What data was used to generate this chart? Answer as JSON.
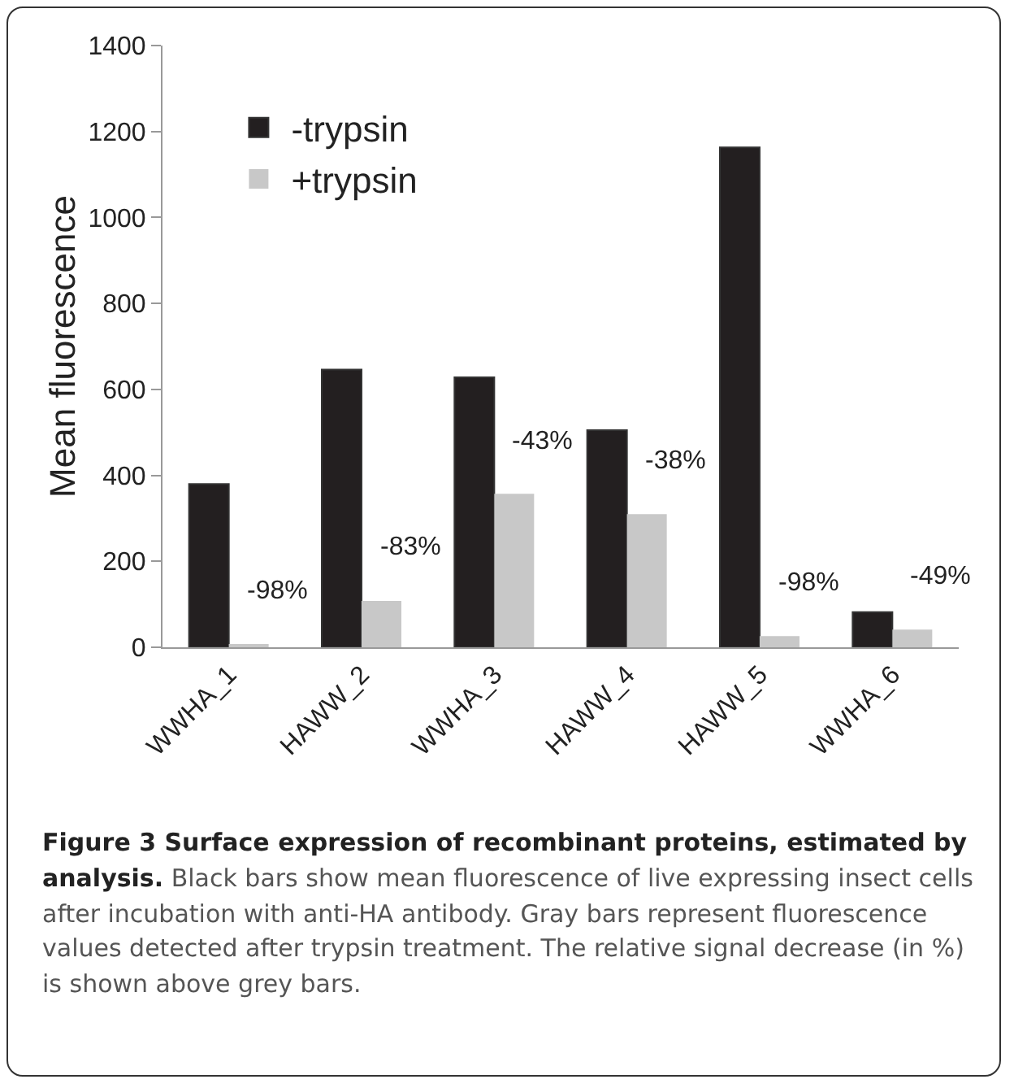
{
  "chart_data": {
    "type": "bar",
    "title": "Figure 3 Surface expression of recombinant proteins, estimated by analysis.",
    "ylabel": "Mean fluorescence",
    "categories": [
      "WWHA_1",
      "HAWW_2",
      "WWHA_3",
      "HAWW_4",
      "HAWW_5",
      "WWHA_6"
    ],
    "series": [
      {
        "name": "-trypsin",
        "color": "#231f20",
        "values": [
          380,
          646,
          628,
          505,
          1163,
          82
        ]
      },
      {
        "name": "+trypsin",
        "color": "#c8c8c8",
        "values": [
          6,
          108,
          357,
          310,
          26,
          41
        ]
      }
    ],
    "ylim": [
      0,
      1400
    ],
    "yticks": [
      0,
      200,
      400,
      600,
      800,
      1000,
      1200,
      1400
    ],
    "grid": false,
    "legend": "top left",
    "annotations": [
      {
        "text": "-98%",
        "x": "WWHA_1",
        "y": 6
      },
      {
        "text": "-83%",
        "x": "HAWW_2",
        "y": 108
      },
      {
        "text": "-43%",
        "x": "WWHA_3",
        "y": 357
      },
      {
        "text": "-38%",
        "x": "HAWW_4",
        "y": 310
      },
      {
        "text": "-98%",
        "x": "HAWW_5",
        "y": 26
      },
      {
        "text": "-49%",
        "x": "WWHA_6",
        "y": 41
      },
      "Black bars show mean fluorescence of live expressing insect cells after incubation with anti-HA antibody. Gray bars represent fluorescence values detected after trypsin treatment. The relative signal decrease (in %) is shown above grey bars."
    ]
  }
}
